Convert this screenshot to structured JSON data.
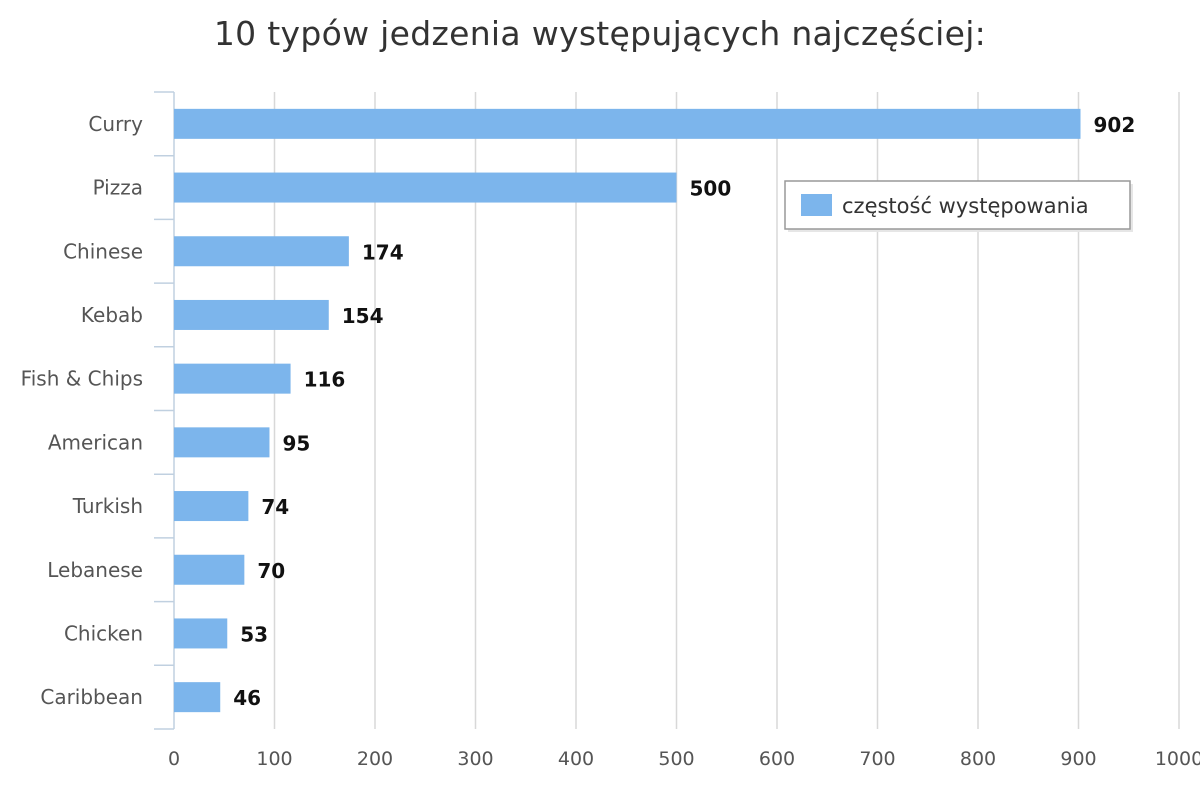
{
  "colors": {
    "bar": "#7cb5ec",
    "grid": "#d8d8d8",
    "axis": "#c0d0e0",
    "text": "#555555",
    "title": "#333333"
  },
  "chart_data": {
    "type": "bar",
    "orientation": "horizontal",
    "title": "10 typów jedzenia występujących najczęściej:",
    "xlabel": "",
    "ylabel": "",
    "categories": [
      "Curry",
      "Pizza",
      "Chinese",
      "Kebab",
      "Fish & Chips",
      "American",
      "Turkish",
      "Lebanese",
      "Chicken",
      "Caribbean"
    ],
    "series": [
      {
        "name": "częstość występowania",
        "values": [
          902,
          500,
          174,
          154,
          116,
          95,
          74,
          70,
          53,
          46
        ]
      }
    ],
    "xlim": [
      0,
      1000
    ],
    "x_ticks": [
      "0",
      "100",
      "200",
      "300",
      "400",
      "500",
      "600",
      "700",
      "800",
      "900",
      "1000"
    ],
    "grid": true,
    "data_labels": true,
    "legend_position": "top-right"
  }
}
